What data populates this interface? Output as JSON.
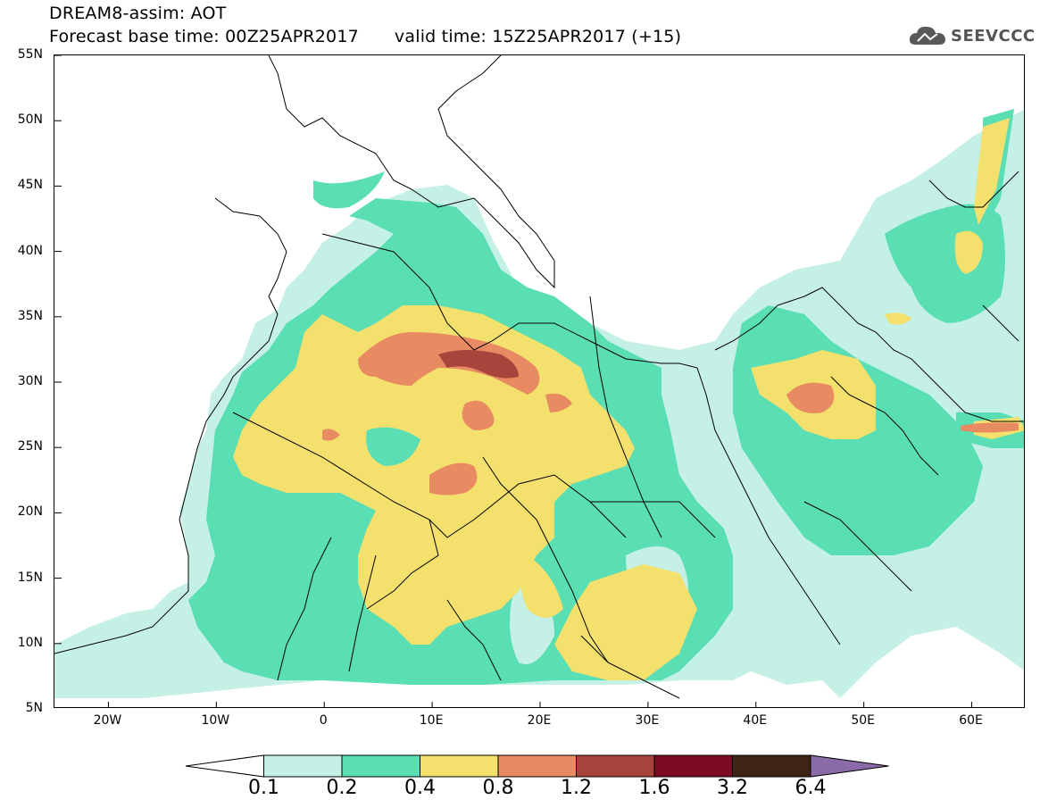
{
  "header": {
    "line1": "DREAM8-assim: AOT",
    "base_time": "Forecast base time: 00Z25APR2017",
    "valid_time": "valid time: 15Z25APR2017 (+15)",
    "logo_text": "SEEVCCC",
    "logo_icon": "cloud-icon"
  },
  "map": {
    "lat_labels": [
      "55N",
      "50N",
      "45N",
      "40N",
      "35N",
      "30N",
      "25N",
      "20N",
      "15N",
      "10N",
      "5N"
    ],
    "lon_labels": [
      "20W",
      "10W",
      "0",
      "10E",
      "20E",
      "30E",
      "40E",
      "50E",
      "60E"
    ],
    "lat_range": [
      5,
      55
    ],
    "lon_range": [
      -25,
      65
    ]
  },
  "colorbar": {
    "labels": [
      "0.1",
      "0.2",
      "0.4",
      "0.8",
      "1.2",
      "1.6",
      "3.2",
      "6.4"
    ],
    "colors": [
      "#ffffff",
      "#c5f0e5",
      "#5adeb4",
      "#f4e06c",
      "#e88a62",
      "#a8443c",
      "#7b0a22",
      "#3d2414",
      "#8a6aa8"
    ]
  },
  "palette": {
    "c1": "#c5f0e5",
    "c2": "#5adeb4",
    "c3": "#f4e06c",
    "c4": "#e88a62",
    "c5": "#a8443c",
    "c6": "#7b0a22",
    "border": "#000000"
  }
}
